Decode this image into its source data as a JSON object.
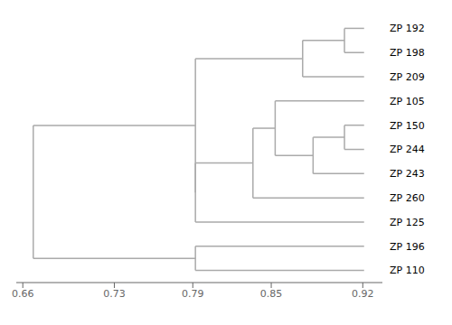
{
  "chart_data": {
    "type": "dendrogram",
    "categories": [
      "ZP 192",
      "ZP 198",
      "ZP 209",
      "ZP 105",
      "ZP 150",
      "ZP 244",
      "ZP 243",
      "ZP 260",
      "ZP 125",
      "ZP 196",
      "ZP 110"
    ],
    "leaf_end": 0.921,
    "tree": {
      "height": 0.668,
      "children": [
        {
          "height": 0.792,
          "children": [
            {
              "height": 0.874,
              "children": [
                {
                  "height": 0.906,
                  "children": [
                    "ZP 192",
                    "ZP 198"
                  ]
                },
                "ZP 209"
              ]
            },
            {
              "height": 0.792,
              "children": [
                {
                  "height": 0.836,
                  "children": [
                    {
                      "height": 0.853,
                      "children": [
                        "ZP 105",
                        {
                          "height": 0.882,
                          "children": [
                            {
                              "height": 0.906,
                              "children": [
                                "ZP 150",
                                "ZP 244"
                              ]
                            },
                            "ZP 243"
                          ]
                        }
                      ]
                    },
                    "ZP 260"
                  ]
                },
                "ZP 125"
              ]
            }
          ]
        },
        {
          "height": 0.792,
          "children": [
            "ZP 196",
            "ZP 110"
          ]
        }
      ]
    },
    "xlim": [
      0.655,
      0.935
    ],
    "xticks": [
      0.66,
      0.73,
      0.79,
      0.85,
      0.92
    ],
    "color": "#aaaaaa"
  }
}
